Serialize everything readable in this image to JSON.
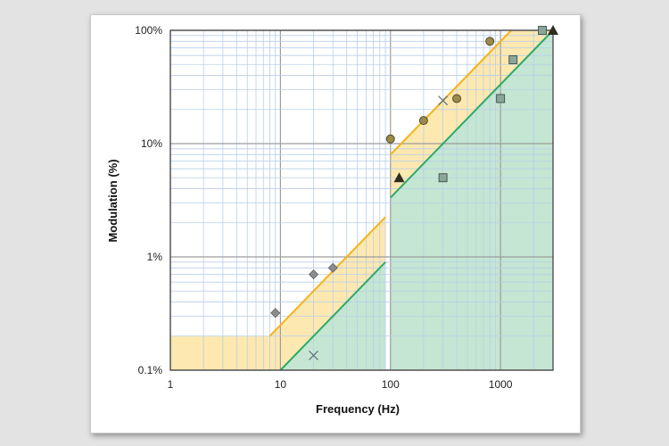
{
  "chart_data": {
    "type": "scatter",
    "xlabel": "Frequency (Hz)",
    "ylabel": "Modulation  (%)",
    "x_scale": "log",
    "y_scale": "log",
    "xlim": [
      1,
      3000
    ],
    "ylim": [
      0.1,
      100
    ],
    "x_ticks": [
      {
        "value": 1,
        "label": "1"
      },
      {
        "value": 10,
        "label": "10"
      },
      {
        "value": 100,
        "label": "100"
      },
      {
        "value": 1000,
        "label": "1000"
      }
    ],
    "y_ticks": [
      {
        "value": 0.1,
        "label": "0.1%"
      },
      {
        "value": 1,
        "label": "1%"
      },
      {
        "value": 10,
        "label": "10%"
      },
      {
        "value": 100,
        "label": "100%"
      }
    ],
    "grid": true,
    "colors": {
      "low_risk_fill": "#c4e6d3",
      "low_risk_line": "#2eaa68",
      "mid_risk_fill": "#fde8b0",
      "mid_risk_line": "#f5b418",
      "grid_minor": "#b9cfe8",
      "grid_major": "#9c9c9c"
    },
    "regions": [
      {
        "id": "low-risk",
        "boundary_line": [
          [
            10,
            0.1
          ],
          [
            90,
            0.9
          ]
        ],
        "boundary_line_2": [
          [
            100,
            3.33
          ],
          [
            3000,
            100
          ]
        ]
      },
      {
        "id": "moderate-risk",
        "upper_line": [
          [
            8,
            0.2
          ],
          [
            90,
            2.25
          ]
        ],
        "upper_line_2": [
          [
            100,
            8
          ],
          [
            1250,
            100
          ]
        ],
        "flat_level": 0.2
      }
    ],
    "series": [
      {
        "marker": "diamond",
        "color": "#8c8c8c",
        "points": [
          [
            9,
            0.32
          ],
          [
            20,
            0.7
          ],
          [
            30,
            0.8
          ]
        ]
      },
      {
        "marker": "x",
        "color": "#607080",
        "points": [
          [
            20,
            0.135
          ],
          [
            300,
            24
          ]
        ]
      },
      {
        "marker": "circle",
        "color": "#9c8a4a",
        "points": [
          [
            100,
            11
          ],
          [
            200,
            16
          ],
          [
            400,
            25
          ],
          [
            800,
            80
          ]
        ]
      },
      {
        "marker": "triangle",
        "color": "#2d2d20",
        "points": [
          [
            120,
            5
          ],
          [
            3000,
            100
          ]
        ]
      },
      {
        "marker": "square",
        "color": "#8aa59a",
        "points": [
          [
            300,
            5
          ],
          [
            1000,
            25
          ],
          [
            1300,
            55
          ],
          [
            2400,
            100
          ]
        ]
      }
    ]
  }
}
